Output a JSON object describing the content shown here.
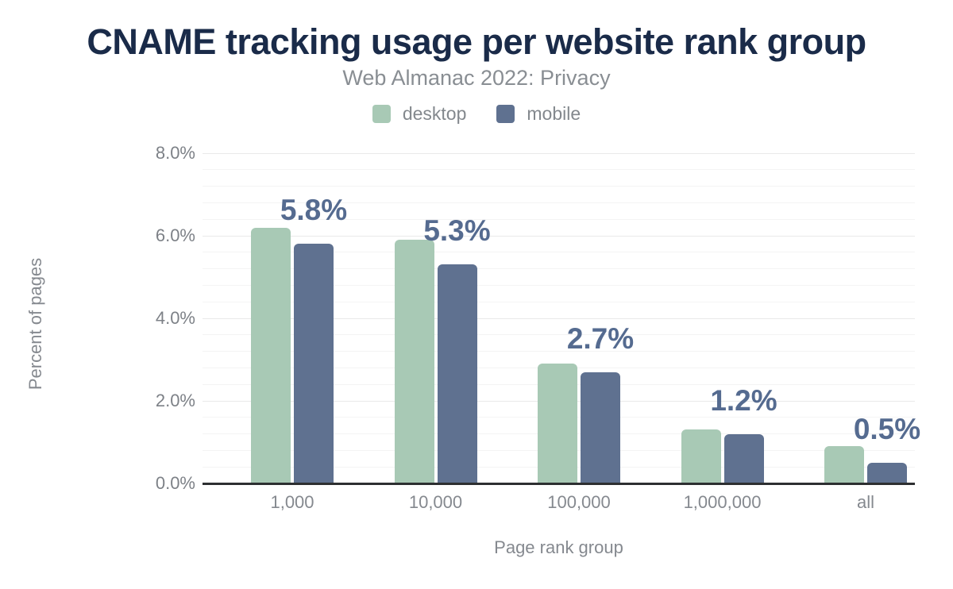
{
  "header": {
    "title": "CNAME tracking usage per website rank group",
    "subtitle": "Web Almanac 2022: Privacy"
  },
  "legend": {
    "items": [
      {
        "label": "desktop",
        "color": "#a8c9b5"
      },
      {
        "label": "mobile",
        "color": "#5f7190"
      }
    ]
  },
  "axes": {
    "ylabel": "Percent of pages",
    "xlabel": "Page rank group"
  },
  "colors": {
    "title": "#1a2b49",
    "subtitle_gray": "#898e93",
    "axis_gray": "#85898f",
    "desktop_bar": "#a8c9b5",
    "mobile_bar": "#5f7190",
    "value_label": "#556b90",
    "baseline": "#2d2f31"
  },
  "chart_data": {
    "type": "bar",
    "title": "CNAME tracking usage per website rank group",
    "subtitle": "Web Almanac 2022: Privacy",
    "categories": [
      "1,000",
      "10,000",
      "100,000",
      "1,000,000",
      "all"
    ],
    "series": [
      {
        "name": "desktop",
        "color": "#a8c9b5",
        "values": [
          6.2,
          5.9,
          2.9,
          1.3,
          0.9
        ]
      },
      {
        "name": "mobile",
        "color": "#5f7190",
        "values": [
          5.8,
          5.3,
          2.7,
          1.2,
          0.5
        ]
      }
    ],
    "bar_labels": {
      "series": "mobile",
      "values": [
        "5.8%",
        "5.3%",
        "2.7%",
        "1.2%",
        "0.5%"
      ]
    },
    "xlabel": "Page rank group",
    "ylabel": "Percent of pages",
    "ylim": [
      0,
      8
    ],
    "yticks": [
      "0.0%",
      "2.0%",
      "4.0%",
      "6.0%",
      "8.0%"
    ],
    "ytick_values": [
      0,
      2,
      4,
      6,
      8
    ],
    "minor_grid_step": 0.4,
    "grid": "horizontal major+minor",
    "legend_position": "top-center"
  }
}
